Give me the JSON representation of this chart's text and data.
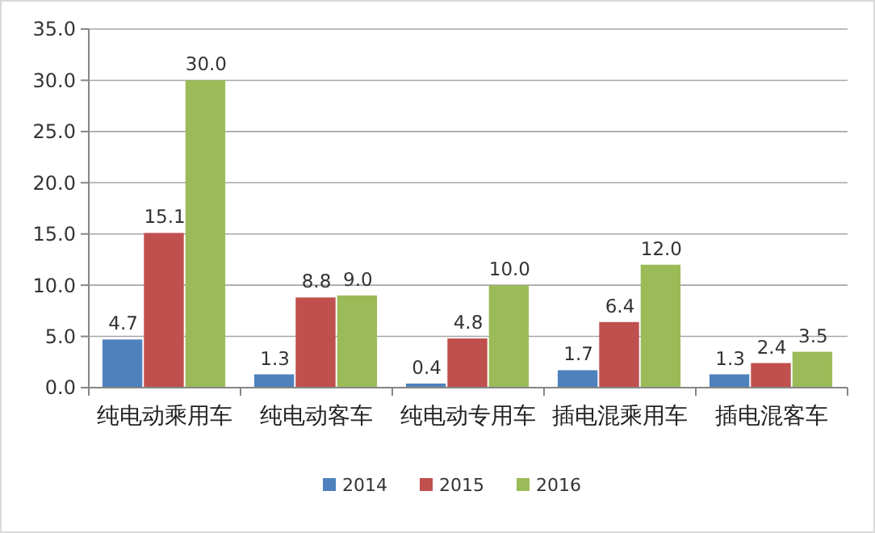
{
  "chart_data": {
    "type": "bar",
    "categories": [
      "纯电动乘用车",
      "纯电动客车",
      "纯电动专用车",
      "插电混乘用车",
      "插电混客车"
    ],
    "series": [
      {
        "name": "2014",
        "color": "#4f81bd",
        "values": [
          4.7,
          1.3,
          0.4,
          1.7,
          1.3
        ],
        "value_labels": [
          "4.7",
          "1.3",
          "0.4",
          "1.7",
          "1.3"
        ]
      },
      {
        "name": "2015",
        "color": "#c0504d",
        "values": [
          15.1,
          8.8,
          4.8,
          6.4,
          2.4
        ],
        "value_labels": [
          "15.1",
          "8.8",
          "4.8",
          "6.4",
          "2.4"
        ]
      },
      {
        "name": "2016",
        "color": "#9bbb59",
        "values": [
          30.0,
          9.0,
          10.0,
          12.0,
          3.5
        ],
        "value_labels": [
          "30.0",
          "9.0",
          "10.0",
          "12.0",
          "3.5"
        ]
      }
    ],
    "ylim": [
      0,
      35
    ],
    "yticks": [
      {
        "value": 0,
        "label": "0.0"
      },
      {
        "value": 5,
        "label": "5.0"
      },
      {
        "value": 10,
        "label": "10.0"
      },
      {
        "value": 15,
        "label": "15.0"
      },
      {
        "value": 20,
        "label": "20.0"
      },
      {
        "value": 25,
        "label": "25.0"
      },
      {
        "value": 30,
        "label": "30.0"
      },
      {
        "value": 35,
        "label": "35.0"
      }
    ],
    "grid": "y",
    "legend": "bottom"
  }
}
